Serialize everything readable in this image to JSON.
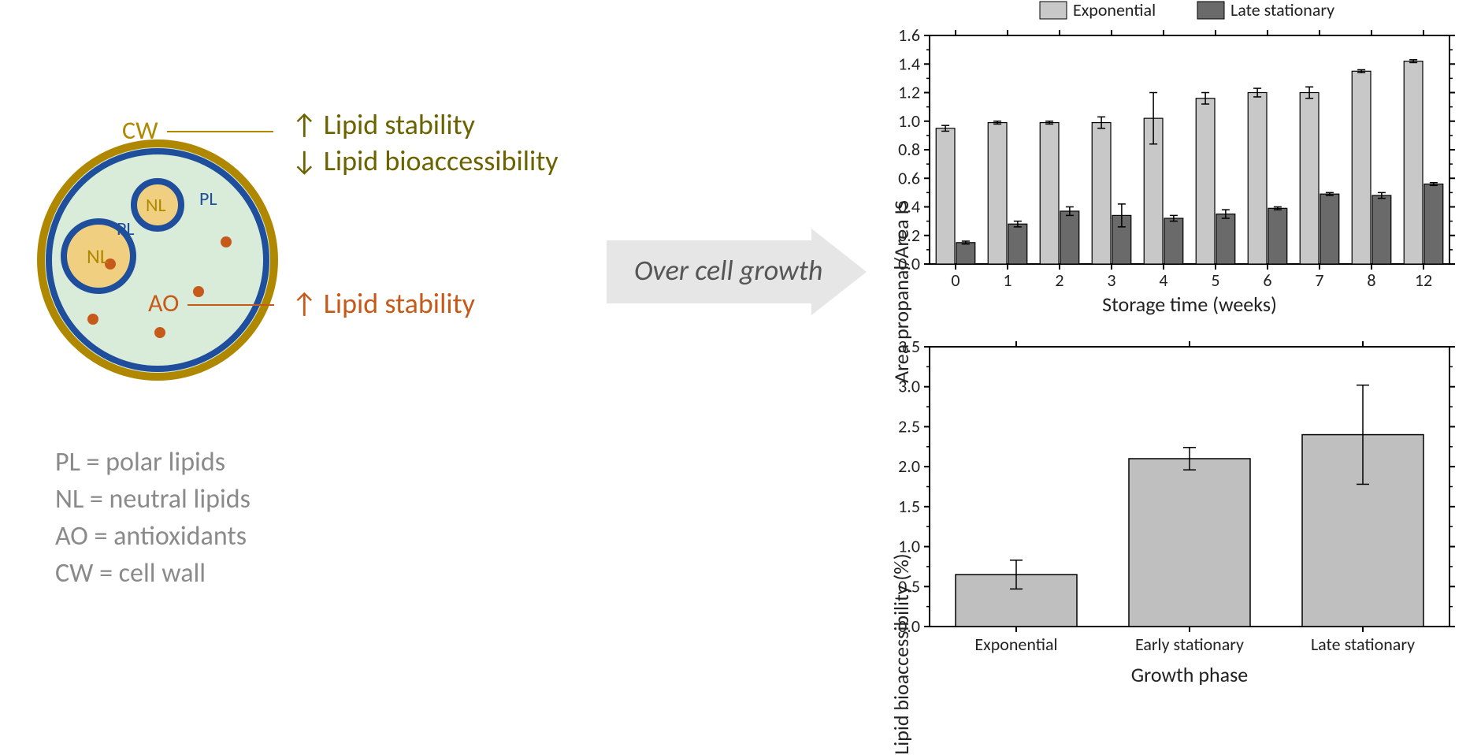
{
  "cell": {
    "outer_ring_color": "#b08800",
    "inner_ring_color": "#1f4e9c",
    "cytoplasm_color": "#d9ecd9",
    "lipid_body_fill": "#f0d080",
    "lipid_body_stroke": "#1f4e9c",
    "ao_dot_color": "#c65a1a",
    "labels": {
      "cw": "CW",
      "pl": "PL",
      "nl": "NL",
      "ao": "AO"
    },
    "pl_color": "#1f4e9c",
    "nl_color": "#b08800"
  },
  "annotations": {
    "cw_line1": "↑ Lipid stability",
    "cw_line2": "↓ Lipid bioaccessibility",
    "ao_line1": "↑ Lipid stability"
  },
  "legend": {
    "pl": "PL = polar lipids",
    "nl": "NL = neutral lipids",
    "ao": "AO = antioxidants",
    "cw": "CW = cell wall"
  },
  "arrow_text": "Over cell growth",
  "chart1": {
    "type": "grouped-bar",
    "series": [
      {
        "name": "Exponential",
        "color": "#c8c8c8"
      },
      {
        "name": "Late stationary",
        "color": "#6a6a6a"
      }
    ],
    "categories": [
      "0",
      "1",
      "2",
      "3",
      "4",
      "5",
      "6",
      "7",
      "8",
      "12"
    ],
    "values_exp": [
      0.95,
      0.99,
      0.99,
      0.99,
      1.02,
      1.16,
      1.2,
      1.2,
      1.35,
      1.42
    ],
    "errors_exp": [
      0.02,
      0.01,
      0.01,
      0.04,
      0.18,
      0.04,
      0.03,
      0.04,
      0.01,
      0.01
    ],
    "values_late": [
      0.15,
      0.28,
      0.37,
      0.34,
      0.32,
      0.35,
      0.39,
      0.49,
      0.48,
      0.56
    ],
    "errors_late": [
      0.01,
      0.02,
      0.03,
      0.08,
      0.02,
      0.03,
      0.01,
      0.01,
      0.02,
      0.01
    ],
    "ylim": [
      0.0,
      1.6
    ],
    "ytick_step": 0.2,
    "x_label": "Storage time (weeks)",
    "y_label": "Area propanal/Area IS",
    "border_color": "#000000",
    "font_size_axis": 26,
    "font_size_tick": 22
  },
  "chart2": {
    "type": "bar",
    "categories": [
      "Exponential",
      "Early stationary",
      "Late stationary"
    ],
    "values": [
      0.65,
      2.1,
      2.4
    ],
    "errors": [
      0.18,
      0.14,
      0.62
    ],
    "bar_color": "#bfbfbf",
    "ylim": [
      0.0,
      3.5
    ],
    "ytick_step": 0.5,
    "x_label": "Growth phase",
    "y_label": "Lipid bioaccessibility (%)",
    "border_color": "#000000",
    "font_size_axis": 26,
    "font_size_tick": 22
  }
}
